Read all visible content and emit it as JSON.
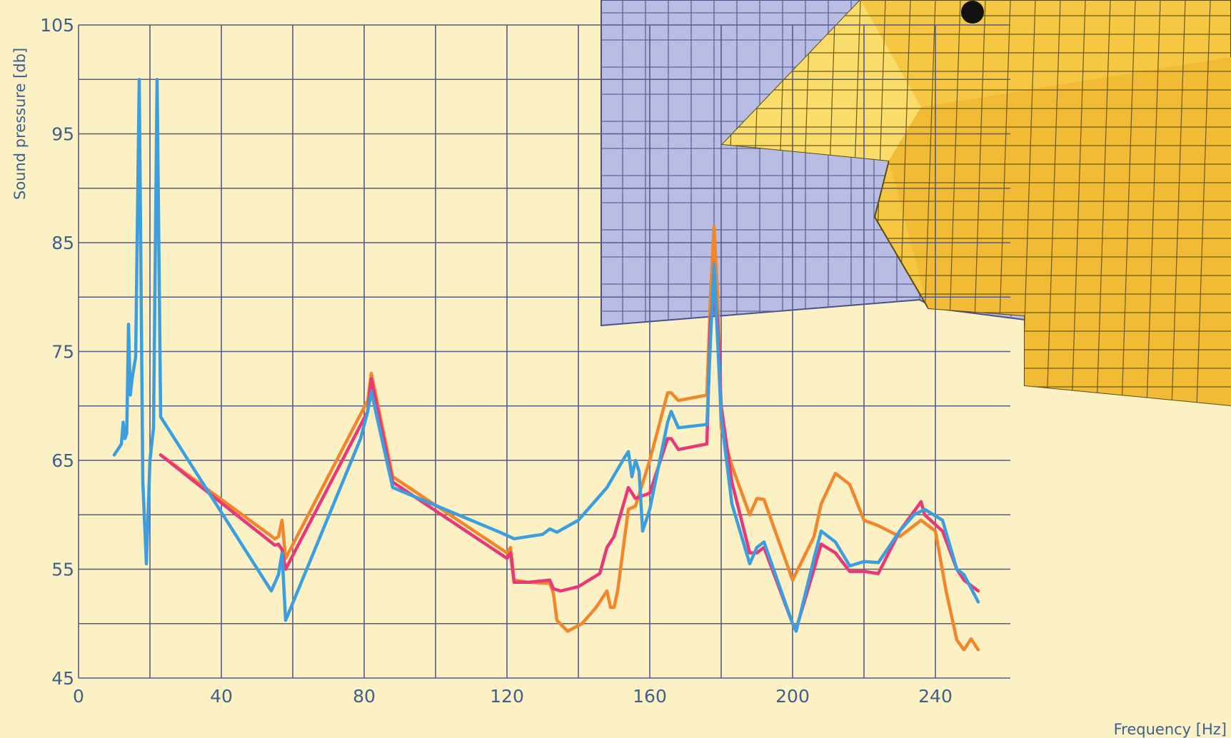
{
  "chart_data": {
    "type": "line",
    "title": "",
    "xlabel": "Frequency [Hz]",
    "ylabel": "Sound pressure [db]",
    "xlim": [
      0,
      255
    ],
    "ylim": [
      45,
      105
    ],
    "xticks": [
      0,
      40,
      80,
      120,
      160,
      200,
      240
    ],
    "yticks": [
      45,
      55,
      65,
      75,
      85,
      95,
      105
    ],
    "grid": true,
    "legend": "none",
    "inset": "finite-element mesh rendering (blue and yellow grids) in upper right",
    "series": [
      {
        "color": "#f2862a",
        "x": [
          23,
          55,
          56,
          57,
          58,
          81,
          82,
          88,
          120,
          121,
          122,
          126,
          132,
          133,
          134,
          137,
          141,
          145,
          148,
          149,
          150,
          151,
          154,
          156,
          160,
          165,
          166,
          168,
          176,
          177,
          178,
          179,
          180,
          183,
          188,
          190,
          192,
          200,
          206,
          208,
          212,
          216,
          220,
          224,
          230,
          236,
          240,
          243,
          246,
          248,
          250,
          252
        ],
        "y": [
          65.5,
          57.8,
          58,
          59.5,
          56,
          70.5,
          73,
          63.5,
          56.5,
          57,
          54,
          53.8,
          53.7,
          52.8,
          50.3,
          49.3,
          50,
          51.5,
          53,
          51.5,
          51.5,
          53,
          60.5,
          60.8,
          65,
          71.2,
          71.2,
          70.5,
          71,
          80,
          86.5,
          80,
          68,
          64.5,
          60,
          61.5,
          61.4,
          54,
          58,
          61,
          63.8,
          62.8,
          59.5,
          59,
          58,
          59.5,
          58.5,
          53,
          48.5,
          47.6,
          48.6,
          47.6
        ]
      },
      {
        "color": "#e8387a",
        "x": [
          23,
          55,
          56,
          57,
          58,
          81,
          82,
          88,
          120,
          121,
          122,
          126,
          132,
          133,
          135,
          140,
          146,
          148,
          150,
          154,
          156,
          160,
          165,
          166,
          168,
          176,
          177,
          178,
          179,
          180,
          183,
          188,
          190,
          192,
          200,
          201,
          206,
          208,
          212,
          216,
          220,
          224,
          230,
          236,
          237,
          242,
          246,
          248,
          252
        ],
        "y": [
          65.5,
          57.2,
          57.3,
          56.8,
          55,
          69.5,
          72.5,
          63,
          56,
          56.5,
          53.8,
          53.8,
          54,
          53.2,
          53,
          53.4,
          54.6,
          57,
          58,
          62.5,
          61.5,
          62,
          67,
          67,
          66,
          66.5,
          78,
          80,
          78,
          70,
          63,
          56.5,
          56.5,
          57,
          50,
          49.5,
          55,
          57.3,
          56.5,
          54.8,
          54.8,
          54.6,
          58.5,
          61.2,
          60,
          58.5,
          55,
          54,
          53
        ]
      },
      {
        "color": "#3a9edf",
        "x": [
          10,
          12,
          12.5,
          13,
          13.5,
          14,
          14.5,
          15,
          16,
          17,
          18,
          19,
          20,
          21,
          22,
          23,
          54,
          56,
          57,
          58,
          79,
          81,
          82,
          88,
          118,
          120,
          122,
          130,
          132,
          134,
          140,
          148,
          153,
          154,
          155,
          156,
          157,
          158,
          160,
          165,
          166,
          168,
          176,
          177,
          178,
          179,
          180,
          183,
          188,
          190,
          192,
          200,
          201,
          206,
          208,
          212,
          216,
          220,
          224,
          230,
          234,
          237,
          242,
          246,
          248,
          252
        ],
        "y": [
          65.5,
          66.5,
          68.5,
          67,
          67.5,
          77.5,
          71,
          72.5,
          74.5,
          100,
          63,
          55.5,
          65,
          68,
          100,
          69,
          53,
          54.5,
          56.5,
          50.3,
          67,
          69.5,
          71.3,
          62.5,
          58.4,
          58.1,
          57.8,
          58.2,
          58.7,
          58.4,
          59.5,
          62.5,
          65.3,
          65.8,
          63.5,
          65,
          64,
          58.5,
          60.5,
          68.5,
          69.5,
          68,
          68.3,
          76,
          83,
          76,
          69,
          61,
          55.5,
          57,
          57.5,
          50,
          49.3,
          56,
          58.5,
          57.5,
          55.3,
          55.7,
          55.6,
          58.5,
          60,
          60.5,
          59.5,
          55,
          54.5,
          52
        ]
      }
    ]
  }
}
